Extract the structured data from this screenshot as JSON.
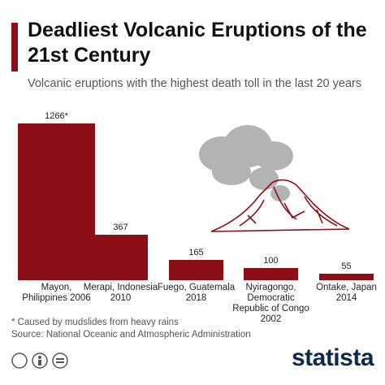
{
  "chart_data": {
    "type": "bar",
    "title": "Deadliest Volcanic Eruptions of the 21st Century",
    "subtitle": "Volcanic eruptions with the highest death toll in the last 20 years",
    "categories": [
      "Mayon, Philippines 2006",
      "Merapi, Indonesia 2010",
      "Fuego, Guatemala 2018",
      "Nyiragongo, Democratic Republic of Congo 2002",
      "Ontake, Japan 2014"
    ],
    "values": [
      1266,
      367,
      165,
      100,
      55
    ],
    "value_labels": [
      "1266*",
      "367",
      "165",
      "100",
      "55"
    ],
    "color": "#8c0f17",
    "footnote": "* Caused by mudslides from heavy rains",
    "source": "Source: National Oceanic and Atmospheric Administration",
    "brand": "statista"
  }
}
